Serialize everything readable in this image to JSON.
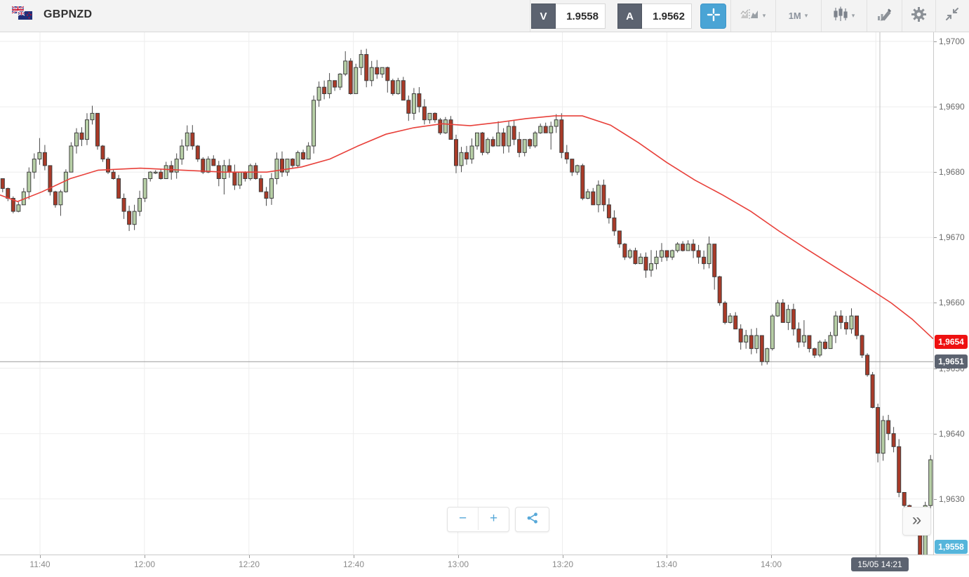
{
  "toolbar": {
    "symbol": "GBPNZD",
    "sell": {
      "label": "V",
      "price": "1.9558"
    },
    "buy": {
      "label": "A",
      "price": "1.9562"
    },
    "timeframe": "1M",
    "caret": "▾"
  },
  "icons": {
    "zoom_out": "−",
    "zoom_in": "+",
    "expand": "»"
  },
  "colors": {
    "accent_blue": "#4aa4d5",
    "badge_red": "#ee1111",
    "badge_slate": "#5c6370",
    "badge_teal": "#55b5db",
    "candle_up_fill": "#b7cfa6",
    "candle_down_fill": "#a93a28",
    "candle_stroke": "#3f3f3f",
    "wick": "#4a4a4a",
    "ma_line": "#e8403a",
    "grid_line": "#ededed",
    "axis_line": "#c9c9c9",
    "mid_line": "#9b9b9b",
    "time_marker_line": "#c2c2c2",
    "icon_gray": "#8b9096"
  },
  "chart_data": {
    "type": "candlestick",
    "symbol": "GBPNZD",
    "interval": "1M",
    "y_range": [
      1.96215,
      1.97015
    ],
    "y_tick_labels": [
      "1,9700",
      "1,9690",
      "1,9680",
      "1,9670",
      "1,9660",
      "1,9650",
      "1,9640",
      "1,9630"
    ],
    "y_tick_prices": [
      1.97,
      1.969,
      1.968,
      1.967,
      1.966,
      1.965,
      1.964,
      1.963
    ],
    "x_tick_labels": [
      "11:40",
      "12:00",
      "12:20",
      "12:40",
      "13:00",
      "13:20",
      "13:40",
      "14:00",
      "14:20"
    ],
    "first_open": 1.9679,
    "closes": [
      1.96775,
      1.9676,
      1.9674,
      1.9675,
      1.9677,
      1.968,
      1.9682,
      1.9683,
      1.9681,
      1.9677,
      1.9675,
      1.9677,
      1.968,
      1.9684,
      1.9686,
      1.9685,
      1.9688,
      1.9689,
      1.9684,
      1.9682,
      1.968,
      1.9679,
      1.9676,
      1.9674,
      1.9672,
      1.9674,
      1.9676,
      1.9679,
      1.968,
      1.968,
      1.9679,
      1.9681,
      1.968,
      1.9682,
      1.9684,
      1.9686,
      1.9684,
      1.9682,
      1.968,
      1.9682,
      1.9681,
      1.9679,
      1.9681,
      1.968,
      1.9678,
      1.968,
      1.9679,
      1.9681,
      1.9679,
      1.9677,
      1.9676,
      1.9679,
      1.9682,
      1.968,
      1.9682,
      1.9681,
      1.9683,
      1.9682,
      1.9684,
      1.9691,
      1.9693,
      1.9692,
      1.9694,
      1.9693,
      1.9695,
      1.9697,
      1.9692,
      1.9696,
      1.9698,
      1.9694,
      1.9696,
      1.9695,
      1.9696,
      1.9694,
      1.9692,
      1.9694,
      1.9691,
      1.9689,
      1.9692,
      1.969,
      1.9688,
      1.9689,
      1.9688,
      1.9686,
      1.9688,
      1.9685,
      1.9681,
      1.9683,
      1.9682,
      1.9684,
      1.9686,
      1.9683,
      1.9685,
      1.9684,
      1.9686,
      1.9684,
      1.9687,
      1.9685,
      1.9683,
      1.9685,
      1.9684,
      1.9686,
      1.9687,
      1.9686,
      1.9687,
      1.9688,
      1.9683,
      1.9682,
      1.968,
      1.9681,
      1.9676,
      1.9677,
      1.9675,
      1.9678,
      1.9675,
      1.9673,
      1.9671,
      1.9669,
      1.9667,
      1.9668,
      1.9666,
      1.9667,
      1.9665,
      1.9666,
      1.9667,
      1.9668,
      1.9667,
      1.9668,
      1.9669,
      1.9668,
      1.9669,
      1.9668,
      1.9667,
      1.9666,
      1.9669,
      1.9664,
      1.966,
      1.9657,
      1.9658,
      1.9656,
      1.9654,
      1.9655,
      1.9653,
      1.9655,
      1.9651,
      1.9653,
      1.9658,
      1.966,
      1.9657,
      1.9659,
      1.9656,
      1.9654,
      1.9655,
      1.9653,
      1.9652,
      1.9654,
      1.9653,
      1.9655,
      1.9658,
      1.9657,
      1.9656,
      1.9658,
      1.9655,
      1.9652,
      1.9649,
      1.9644,
      1.9637,
      1.9642,
      1.964,
      1.9638,
      1.9631,
      1.9629,
      1.9628,
      1.9625,
      1.9616,
      1.9629,
      1.9636
    ],
    "ma_points": [
      [
        0,
        1.96765
      ],
      [
        25,
        1.96755
      ],
      [
        60,
        1.9677
      ],
      [
        100,
        1.9679
      ],
      [
        140,
        1.96803
      ],
      [
        200,
        1.96806
      ],
      [
        260,
        1.96803
      ],
      [
        320,
        1.968
      ],
      [
        380,
        1.968
      ],
      [
        430,
        1.96808
      ],
      [
        470,
        1.9682
      ],
      [
        510,
        1.9684
      ],
      [
        550,
        1.96858
      ],
      [
        590,
        1.96868
      ],
      [
        630,
        1.96874
      ],
      [
        670,
        1.96871
      ],
      [
        710,
        1.96876
      ],
      [
        750,
        1.96882
      ],
      [
        790,
        1.96886
      ],
      [
        830,
        1.96886
      ],
      [
        870,
        1.96872
      ],
      [
        910,
        1.96845
      ],
      [
        950,
        1.96815
      ],
      [
        990,
        1.96788
      ],
      [
        1030,
        1.96765
      ],
      [
        1070,
        1.9674
      ],
      [
        1110,
        1.9671
      ],
      [
        1150,
        1.96682
      ],
      [
        1190,
        1.96655
      ],
      [
        1230,
        1.96628
      ],
      [
        1270,
        1.966
      ],
      [
        1300,
        1.96575
      ],
      [
        1330,
        1.96545
      ]
    ],
    "mid_line_price": 1.9651,
    "badges": {
      "ma": "1,9654",
      "ma_price": 1.9654,
      "mid": "1,9651",
      "mid_price": 1.9651,
      "sell": "1,9558",
      "sell_price": 1.9558,
      "time": "15/05 14:21"
    }
  }
}
